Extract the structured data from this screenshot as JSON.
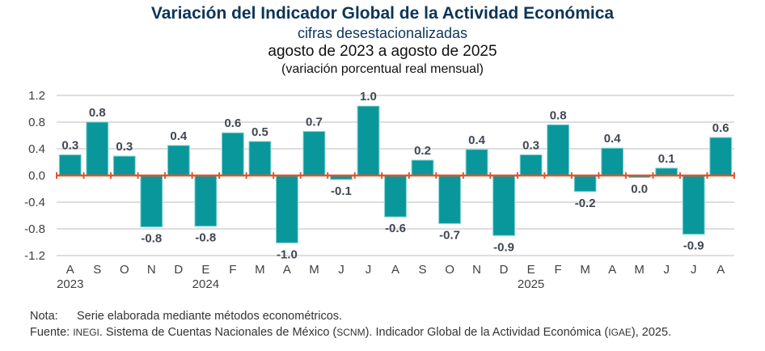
{
  "chart_data": {
    "type": "bar",
    "title": "Variación del Indicador Global de la Actividad Económica",
    "subtitle": "cifras desestacionalizadas",
    "period": "agosto de 2023 a agosto de 2025",
    "units": "(variación porcentual real mensual)",
    "xlabel": "",
    "ylabel": "",
    "ylim": [
      -1.2,
      1.2
    ],
    "yticks": [
      1.2,
      0.8,
      0.4,
      0.0,
      -0.4,
      -0.8,
      -1.2
    ],
    "ytick_labels": [
      "1.2",
      "0.8",
      "0.4",
      "0.0",
      "-0.4",
      "-0.8",
      "-1.2"
    ],
    "grid": true,
    "legend": "none",
    "categories": [
      "A",
      "S",
      "O",
      "N",
      "D",
      "E",
      "F",
      "M",
      "A",
      "M",
      "J",
      "J",
      "A",
      "S",
      "O",
      "N",
      "D",
      "E",
      "F",
      "M",
      "A",
      "M",
      "J",
      "J",
      "A"
    ],
    "year_labels": [
      {
        "index": 0,
        "label": "2023"
      },
      {
        "index": 5,
        "label": "2024"
      },
      {
        "index": 17,
        "label": "2025"
      }
    ],
    "values": [
      0.31,
      0.8,
      0.29,
      -0.77,
      0.45,
      -0.76,
      0.64,
      0.51,
      -1.01,
      0.66,
      -0.06,
      1.04,
      -0.62,
      0.23,
      -0.72,
      0.39,
      -0.9,
      0.31,
      0.76,
      -0.24,
      0.41,
      -0.03,
      0.11,
      -0.88,
      0.57
    ],
    "data_labels": [
      "0.3",
      "0.8",
      "0.3",
      "-0.8",
      "0.4",
      "-0.8",
      "0.6",
      "0.5",
      "-1.0",
      "0.7",
      "-0.1",
      "1.0",
      "-0.6",
      "0.2",
      "-0.7",
      "0.4",
      "-0.9",
      "0.3",
      "0.8",
      "-0.2",
      "0.4",
      "0.0",
      "0.1",
      "-0.9",
      "0.6"
    ],
    "colors": {
      "bar": "#0a979b",
      "bar_edge": "#7fd3d3",
      "zero_line": "#e2562b",
      "grid": "#d4d4d4",
      "title": "#0d3558"
    }
  },
  "notes": {
    "nota_label": "Nota:",
    "nota_text": "Serie elaborada mediante métodos econométricos.",
    "fuente_label": "Fuente:",
    "fuente_inegi": "INEGI",
    "fuente_text1": ". Sistema de Cuentas Nacionales de México (",
    "fuente_scnm": "SCNM",
    "fuente_text2": "). Indicador Global de la Actividad Económica (",
    "fuente_igae": "IGAE",
    "fuente_text3": "), 2025."
  }
}
